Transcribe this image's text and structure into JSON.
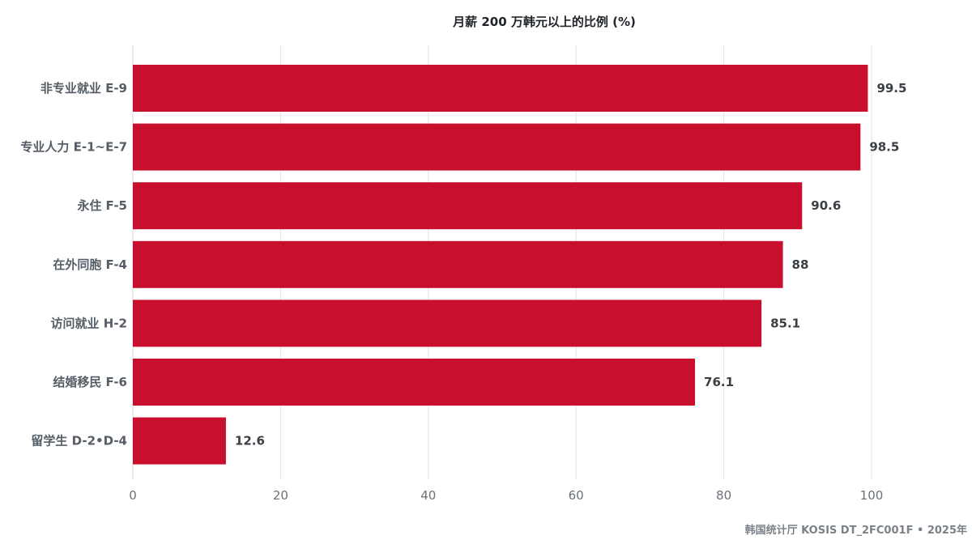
{
  "chart_data": {
    "type": "bar",
    "orientation": "horizontal",
    "title": "月薪 200 万韩元以上的比例 (%)",
    "categories": [
      "非专业就业 E-9",
      "专业人力 E-1~E-7",
      "永住 F-5",
      "在外同胞 F-4",
      "访问就业 H-2",
      "结婚移民 F-6",
      "留学生 D-2•D-4"
    ],
    "values": [
      99.5,
      98.5,
      90.6,
      88,
      85.1,
      76.1,
      12.6
    ],
    "value_labels": [
      "99.5",
      "98.5",
      "90.6",
      "88",
      "85.1",
      "76.1",
      "12.6"
    ],
    "xlim": [
      0,
      100
    ],
    "x_ticks": [
      0,
      20,
      40,
      60,
      80,
      100
    ],
    "x_tick_labels": [
      "0",
      "20",
      "40",
      "60",
      "80",
      "100"
    ],
    "grid": true,
    "legend": "none",
    "bar_color": "#c8102e"
  },
  "footer": {
    "source": "韩国统计厅 KOSIS DT_2FC001F • 2025年"
  }
}
